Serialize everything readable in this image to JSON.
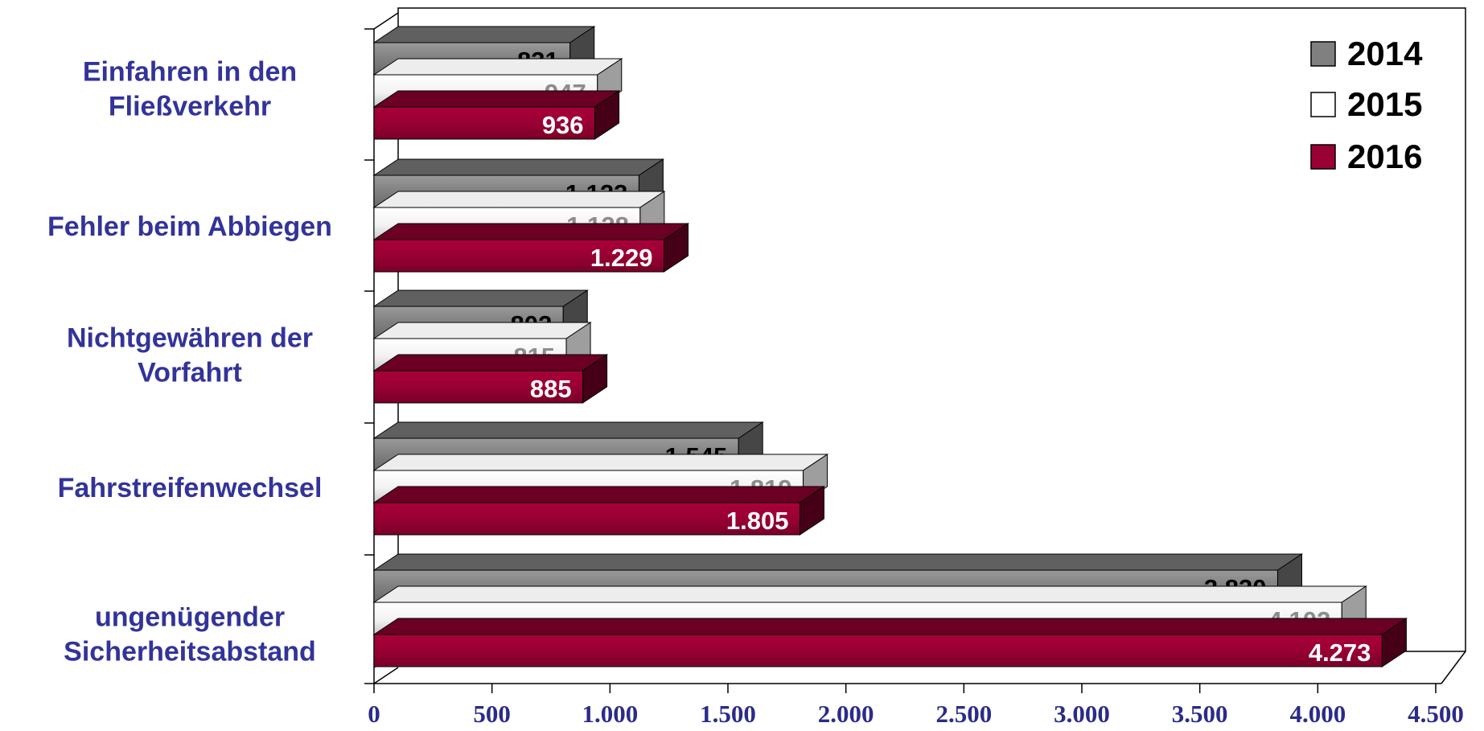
{
  "chart_data": {
    "type": "bar",
    "orientation": "horizontal",
    "style": "3d",
    "categories": [
      [
        "Einfahren in den",
        "Fließverkehr"
      ],
      [
        "Fehler beim Abbiegen"
      ],
      [
        "Nichtgewähren der",
        "Vorfahrt"
      ],
      [
        "Fahrstreifenwechsel"
      ],
      [
        "ungenügender",
        "Sicherheitsabstand"
      ]
    ],
    "series": [
      {
        "name": "2014",
        "values": [
          831,
          1123,
          802,
          1545,
          3830
        ],
        "labels": [
          "831",
          "1.123",
          "802",
          "1.545",
          "3.830"
        ],
        "color": "#808080",
        "label_color": "#000000"
      },
      {
        "name": "2015",
        "values": [
          947,
          1128,
          815,
          1819,
          4102
        ],
        "labels": [
          "947",
          "1.128",
          "815",
          "1.819",
          "4.102"
        ],
        "color": "#ffffff",
        "label_color": "#8c8c8c"
      },
      {
        "name": "2016",
        "values": [
          936,
          1229,
          885,
          1805,
          4273
        ],
        "labels": [
          "936",
          "1.229",
          "885",
          "1.805",
          "4.273"
        ],
        "color": "#990033",
        "label_color": "#ffffff"
      }
    ],
    "xlim": [
      0,
      4500
    ],
    "x_ticks": [
      0,
      500,
      1000,
      1500,
      2000,
      2500,
      3000,
      3500,
      4000,
      4500
    ],
    "x_tick_labels": [
      "0",
      "500",
      "1.000",
      "1.500",
      "2.000",
      "2.500",
      "3.000",
      "3.500",
      "4.000",
      "4.500"
    ],
    "grid": false,
    "legend": "top-right"
  }
}
